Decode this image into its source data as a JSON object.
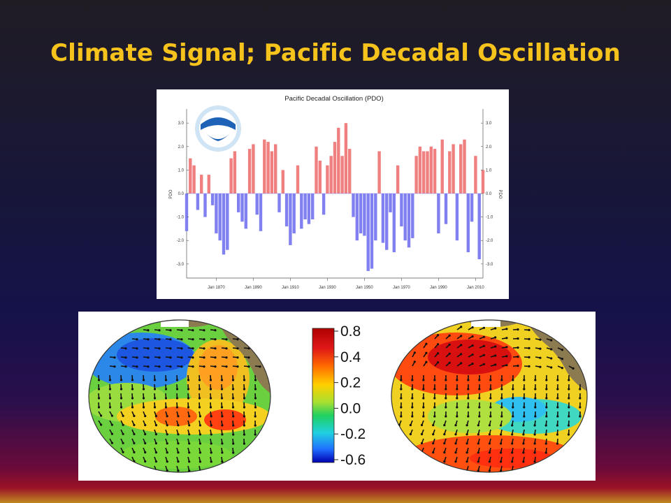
{
  "slide": {
    "title": "Climate Signal; Pacific Decadal Oscillation"
  },
  "chart_data": [
    {
      "type": "bar",
      "title": "Pacific Decadal Oscillation (PDO)",
      "xlabel": "",
      "ylabel": "PDO",
      "ylim": [
        -3.6,
        3.6
      ],
      "xlim": [
        1854,
        2014
      ],
      "yticks": [
        "3.0",
        "2.0",
        "1.0",
        "0.0",
        "-1.0",
        "-2.0",
        "-3.0"
      ],
      "xticks": [
        "Jan 1870",
        "Jan 1890",
        "Jan 1910",
        "Jan 1930",
        "Jan 1950",
        "Jan 1970",
        "Jan 1990",
        "Jan 2010"
      ],
      "positive_color": "#f08080",
      "negative_color": "#8080f0",
      "x": [
        1854,
        1856,
        1858,
        1860,
        1862,
        1864,
        1866,
        1868,
        1870,
        1872,
        1874,
        1876,
        1878,
        1880,
        1882,
        1884,
        1886,
        1888,
        1890,
        1892,
        1894,
        1896,
        1898,
        1900,
        1902,
        1904,
        1906,
        1908,
        1910,
        1912,
        1914,
        1916,
        1918,
        1920,
        1922,
        1924,
        1926,
        1928,
        1930,
        1932,
        1934,
        1936,
        1938,
        1940,
        1942,
        1944,
        1946,
        1948,
        1950,
        1952,
        1954,
        1956,
        1958,
        1960,
        1962,
        1964,
        1966,
        1968,
        1970,
        1972,
        1974,
        1976,
        1978,
        1980,
        1982,
        1984,
        1986,
        1988,
        1990,
        1992,
        1994,
        1996,
        1998,
        2000,
        2002,
        2004,
        2006,
        2008,
        2010,
        2012,
        2014
      ],
      "values": [
        -1.6,
        1.5,
        1.2,
        -0.7,
        0.8,
        -1.0,
        0.8,
        -0.5,
        -1.7,
        -2.0,
        -2.6,
        -2.4,
        1.5,
        1.8,
        -0.8,
        -1.2,
        -1.5,
        1.9,
        2.1,
        -0.9,
        -1.6,
        2.3,
        2.2,
        1.8,
        2.1,
        -0.8,
        1.0,
        -1.4,
        -2.2,
        -1.7,
        1.2,
        -1.5,
        -1.1,
        -1.3,
        -1.1,
        2.0,
        1.4,
        -0.9,
        1.2,
        1.6,
        2.2,
        2.8,
        1.6,
        3.0,
        1.9,
        -1.0,
        -2.0,
        -1.7,
        -1.8,
        -3.3,
        -3.2,
        -2.0,
        1.8,
        -2.1,
        -2.4,
        -0.8,
        -2.5,
        1.2,
        -1.4,
        -2.0,
        -2.3,
        -1.9,
        1.6,
        2.0,
        1.8,
        1.8,
        2.0,
        1.9,
        -1.7,
        2.3,
        -1.3,
        1.8,
        2.1,
        -2.0,
        2.1,
        2.3,
        -2.5,
        -1.2,
        1.6,
        -2.8,
        1.0
      ]
    },
    {
      "type": "heatmap",
      "title": "",
      "colorbar": {
        "labels": [
          "0.8",
          "0.4",
          "0.2",
          "0.0",
          "-0.2",
          "-0.6"
        ],
        "colors": [
          "#c40000",
          "#ff5a00",
          "#ffd200",
          "#3ad43a",
          "#28c8f0",
          "#0000c0"
        ]
      }
    }
  ]
}
